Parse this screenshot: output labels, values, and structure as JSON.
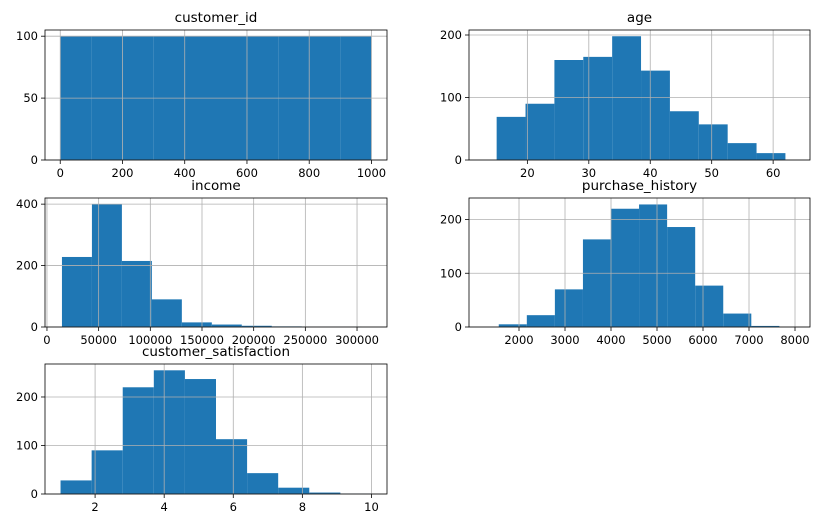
{
  "chart_data": [
    {
      "type": "histogram",
      "title": "customer_id",
      "color": "#1f77b4",
      "grid": true,
      "bins": [
        1,
        100.9,
        200.8,
        300.7,
        400.6,
        500.5,
        600.4,
        700.3,
        800.2,
        900.1,
        1000
      ],
      "values": [
        100,
        100,
        100,
        100,
        100,
        100,
        100,
        100,
        100,
        100
      ],
      "xlim": [
        -48.95,
        1049.95
      ],
      "xticks": [
        0,
        200,
        400,
        600,
        800,
        1000
      ],
      "ylim": [
        0,
        105
      ],
      "yticks": [
        0,
        50,
        100
      ]
    },
    {
      "type": "histogram",
      "title": "age",
      "color": "#1f77b4",
      "grid": true,
      "bins": [
        15,
        19.7,
        24.4,
        29.1,
        33.8,
        38.5,
        43.2,
        47.9,
        52.6,
        57.3,
        62
      ],
      "values": [
        69,
        90,
        160,
        165,
        198,
        143,
        78,
        57,
        27,
        11
      ],
      "xlim": [
        10.5,
        66
      ],
      "xticks": [
        20,
        30,
        40,
        50,
        60
      ],
      "ylim": [
        0,
        208
      ],
      "yticks": [
        0,
        100,
        200
      ]
    },
    {
      "type": "histogram",
      "title": "income",
      "color": "#1f77b4",
      "grid": true,
      "bins": [
        14500,
        43500,
        72500,
        101500,
        130500,
        159500,
        188500,
        217500,
        246500,
        275500,
        304500
      ],
      "values": [
        228,
        400,
        215,
        90,
        15,
        8,
        4,
        2,
        1,
        1
      ],
      "xlim": [
        -1900,
        329000
      ],
      "xticks": [
        0,
        50000,
        100000,
        150000,
        200000,
        250000,
        300000
      ],
      "ylim": [
        0,
        420
      ],
      "yticks": [
        0,
        200,
        400
      ]
    },
    {
      "type": "histogram",
      "title": "purchase_history",
      "color": "#1f77b4",
      "grid": true,
      "bins": [
        1560,
        2170,
        2780,
        3390,
        4000,
        4610,
        5220,
        5830,
        6440,
        7050,
        7660
      ],
      "values": [
        5,
        22,
        70,
        163,
        220,
        228,
        186,
        77,
        25,
        2
      ],
      "xlim": [
        913,
        8326
      ],
      "xticks": [
        2000,
        3000,
        4000,
        5000,
        6000,
        7000,
        8000
      ],
      "ylim": [
        0,
        240
      ],
      "yticks": [
        0,
        100,
        200
      ]
    },
    {
      "type": "histogram",
      "title": "customer_satisfaction",
      "color": "#1f77b4",
      "grid": true,
      "bins": [
        1,
        1.9,
        2.8,
        3.7,
        4.6,
        5.5,
        6.4,
        7.3,
        8.2,
        9.1,
        10
      ],
      "values": [
        28,
        90,
        220,
        255,
        237,
        113,
        43,
        13,
        3,
        1
      ],
      "xlim": [
        0.55,
        10.45
      ],
      "xticks": [
        2,
        4,
        6,
        8,
        10
      ],
      "ylim": [
        0,
        268
      ],
      "yticks": [
        0,
        100,
        200
      ]
    }
  ]
}
